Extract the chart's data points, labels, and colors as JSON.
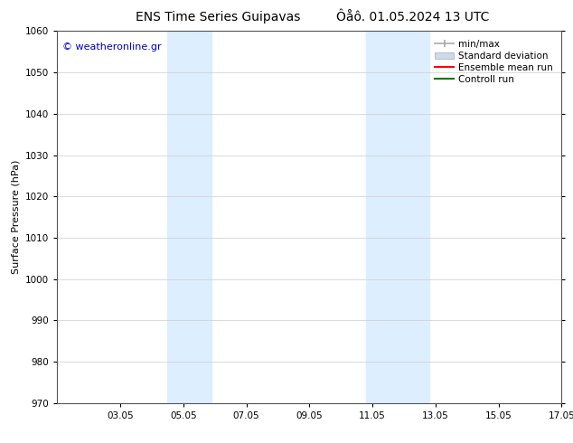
{
  "title_left": "ENS Time Series Guipavas",
  "title_right": "Ôåô. 01.05.2024 13 UTC",
  "ylabel": "Surface Pressure (hPa)",
  "ylim": [
    970,
    1060
  ],
  "yticks": [
    970,
    980,
    990,
    1000,
    1010,
    1020,
    1030,
    1040,
    1050,
    1060
  ],
  "xlim": [
    1,
    17
  ],
  "xtick_labels": [
    "03.05",
    "05.05",
    "07.05",
    "09.05",
    "11.05",
    "13.05",
    "15.05",
    "17.05"
  ],
  "xtick_positions": [
    3,
    5,
    7,
    9,
    11,
    13,
    15,
    17
  ],
  "watermark": "© weatheronline.gr",
  "watermark_color": "#0000cc",
  "shaded_bands": [
    {
      "x_start": 4.5,
      "x_end": 5.9
    },
    {
      "x_start": 10.8,
      "x_end": 12.8
    }
  ],
  "shaded_color": "#ddeeff",
  "legend_entries": [
    {
      "label": "min/max",
      "color": "#aaaaaa",
      "lw": 1.2
    },
    {
      "label": "Standard deviation",
      "color": "#ccdaee",
      "lw": 5
    },
    {
      "label": "Ensemble mean run",
      "color": "#ff0000",
      "lw": 1.5
    },
    {
      "label": "Controll run",
      "color": "#007700",
      "lw": 1.5
    }
  ],
  "background_color": "#ffffff",
  "grid_color": "#cccccc",
  "spine_color": "#555555",
  "title_fontsize": 10,
  "axis_label_fontsize": 8,
  "tick_fontsize": 7.5,
  "legend_fontsize": 7.5,
  "watermark_fontsize": 8
}
